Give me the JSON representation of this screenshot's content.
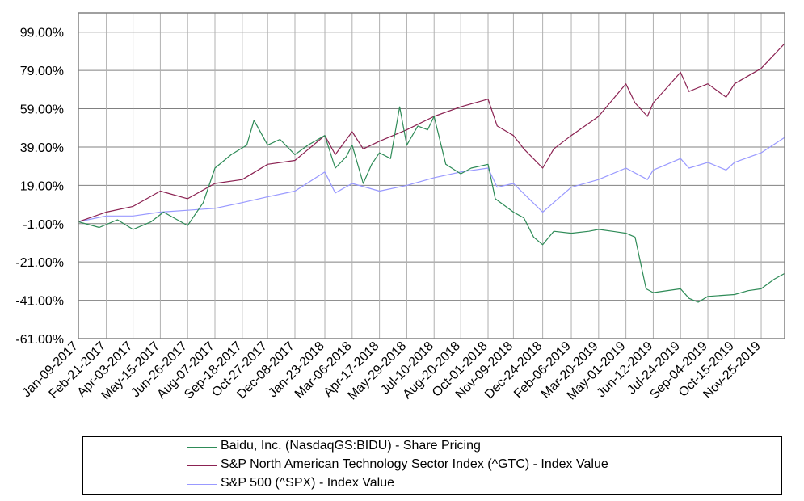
{
  "chart_data": {
    "type": "line",
    "ylim": [
      -61,
      109
    ],
    "yticks": [
      "99.00%",
      "79.00%",
      "59.00%",
      "39.00%",
      "19.00%",
      "-1.00%",
      "-21.00%",
      "-41.00%",
      "-61.00%"
    ],
    "ytick_values": [
      99,
      79,
      59,
      39,
      19,
      -1,
      -21,
      -41,
      -61
    ],
    "xticks": [
      "Jan-09-2017",
      "Feb-21-2017",
      "Apr-03-2017",
      "May-15-2017",
      "Jun-26-2017",
      "Aug-07-2017",
      "Sep-18-2017",
      "Oct-27-2017",
      "Dec-08-2017",
      "Jan-23-2018",
      "Mar-06-2018",
      "Apr-17-2018",
      "May-29-2018",
      "Jul-10-2018",
      "Aug-20-2018",
      "Oct-01-2018",
      "Nov-09-2018",
      "Dec-24-2018",
      "Feb-06-2019",
      "Mar-20-2019",
      "May-01-2019",
      "Jun-12-2019",
      "Jul-24-2019",
      "Sep-04-2019",
      "Oct-15-2019",
      "Nov-25-2019"
    ],
    "xlim": [
      "Jan-09-2017",
      "Dec-31-2019"
    ],
    "grid": true,
    "legend_position": "bottom",
    "series": [
      {
        "name": "Baidu, Inc. (NasdaqGS:BIDU) - Share Pricing",
        "color": "#2e8b57",
        "points": [
          [
            "Jan-09-2017",
            0
          ],
          [
            "Feb-10-2017",
            -3
          ],
          [
            "Mar-10-2017",
            1
          ],
          [
            "Apr-03-2017",
            -4
          ],
          [
            "May-01-2017",
            0
          ],
          [
            "May-20-2017",
            5
          ],
          [
            "Jun-26-2017",
            -2
          ],
          [
            "Jul-20-2017",
            10
          ],
          [
            "Aug-07-2017",
            28
          ],
          [
            "Sep-01-2017",
            35
          ],
          [
            "Sep-25-2017",
            40
          ],
          [
            "Oct-06-2017",
            53
          ],
          [
            "Oct-27-2017",
            40
          ],
          [
            "Nov-15-2017",
            43
          ],
          [
            "Dec-08-2017",
            35
          ],
          [
            "Dec-28-2017",
            40
          ],
          [
            "Jan-23-2018",
            45
          ],
          [
            "Feb-08-2018",
            28
          ],
          [
            "Feb-25-2018",
            34
          ],
          [
            "Mar-06-2018",
            40
          ],
          [
            "Mar-23-2018",
            20
          ],
          [
            "Apr-05-2018",
            30
          ],
          [
            "Apr-17-2018",
            36
          ],
          [
            "May-04-2018",
            33
          ],
          [
            "May-18-2018",
            60
          ],
          [
            "May-29-2018",
            40
          ],
          [
            "Jun-15-2018",
            50
          ],
          [
            "Jun-30-2018",
            48
          ],
          [
            "Jul-10-2018",
            55
          ],
          [
            "Jul-28-2018",
            30
          ],
          [
            "Aug-20-2018",
            25
          ],
          [
            "Sep-05-2018",
            28
          ],
          [
            "Oct-01-2018",
            30
          ],
          [
            "Oct-12-2018",
            12
          ],
          [
            "Nov-09-2018",
            5
          ],
          [
            "Nov-25-2018",
            2
          ],
          [
            "Dec-10-2018",
            -8
          ],
          [
            "Dec-24-2018",
            -12
          ],
          [
            "Jan-10-2019",
            -5
          ],
          [
            "Feb-06-2019",
            -6
          ],
          [
            "Mar-05-2019",
            -5
          ],
          [
            "Mar-20-2019",
            -4
          ],
          [
            "Apr-10-2019",
            -5
          ],
          [
            "May-01-2019",
            -6
          ],
          [
            "May-15-2019",
            -8
          ],
          [
            "Jun-01-2019",
            -35
          ],
          [
            "Jun-12-2019",
            -37
          ],
          [
            "Jul-24-2019",
            -35
          ],
          [
            "Aug-06-2019",
            -40
          ],
          [
            "Aug-20-2019",
            -42
          ],
          [
            "Sep-04-2019",
            -39
          ],
          [
            "Oct-15-2019",
            -38
          ],
          [
            "Nov-05-2019",
            -36
          ],
          [
            "Nov-25-2019",
            -35
          ],
          [
            "Dec-15-2019",
            -30
          ],
          [
            "Dec-31-2019",
            -27
          ]
        ]
      },
      {
        "name": "S&P North American Technology Sector Index (^GTC) - Index Value",
        "color": "#8b2252",
        "points": [
          [
            "Jan-09-2017",
            0
          ],
          [
            "Feb-21-2017",
            5
          ],
          [
            "Apr-03-2017",
            8
          ],
          [
            "May-15-2017",
            16
          ],
          [
            "Jun-26-2017",
            12
          ],
          [
            "Aug-07-2017",
            20
          ],
          [
            "Sep-18-2017",
            22
          ],
          [
            "Oct-27-2017",
            30
          ],
          [
            "Dec-08-2017",
            32
          ],
          [
            "Jan-23-2018",
            45
          ],
          [
            "Feb-08-2018",
            35
          ],
          [
            "Mar-06-2018",
            47
          ],
          [
            "Mar-23-2018",
            38
          ],
          [
            "Apr-17-2018",
            42
          ],
          [
            "May-29-2018",
            48
          ],
          [
            "Jul-10-2018",
            55
          ],
          [
            "Aug-20-2018",
            60
          ],
          [
            "Sep-10-2018",
            62
          ],
          [
            "Oct-01-2018",
            64
          ],
          [
            "Oct-15-2018",
            50
          ],
          [
            "Nov-09-2018",
            45
          ],
          [
            "Nov-25-2018",
            38
          ],
          [
            "Dec-24-2018",
            28
          ],
          [
            "Jan-10-2019",
            38
          ],
          [
            "Feb-06-2019",
            45
          ],
          [
            "Mar-20-2019",
            55
          ],
          [
            "May-01-2019",
            72
          ],
          [
            "May-15-2019",
            62
          ],
          [
            "Jun-03-2019",
            55
          ],
          [
            "Jun-12-2019",
            62
          ],
          [
            "Jul-24-2019",
            78
          ],
          [
            "Aug-06-2019",
            68
          ],
          [
            "Aug-20-2019",
            70
          ],
          [
            "Sep-04-2019",
            72
          ],
          [
            "Oct-02-2019",
            65
          ],
          [
            "Oct-15-2019",
            72
          ],
          [
            "Nov-25-2019",
            80
          ],
          [
            "Dec-31-2019",
            93
          ]
        ]
      },
      {
        "name": "S&P 500 (^SPX) - Index Value",
        "color": "#9999ff",
        "points": [
          [
            "Jan-09-2017",
            0
          ],
          [
            "Feb-21-2017",
            3
          ],
          [
            "Apr-03-2017",
            3
          ],
          [
            "May-15-2017",
            5
          ],
          [
            "Jun-26-2017",
            6
          ],
          [
            "Aug-07-2017",
            7
          ],
          [
            "Sep-18-2017",
            10
          ],
          [
            "Oct-27-2017",
            13
          ],
          [
            "Dec-08-2017",
            16
          ],
          [
            "Jan-23-2018",
            26
          ],
          [
            "Feb-08-2018",
            15
          ],
          [
            "Mar-06-2018",
            20
          ],
          [
            "Apr-17-2018",
            16
          ],
          [
            "May-29-2018",
            19
          ],
          [
            "Jul-10-2018",
            23
          ],
          [
            "Aug-20-2018",
            26
          ],
          [
            "Oct-01-2018",
            28
          ],
          [
            "Oct-15-2018",
            18
          ],
          [
            "Nov-09-2018",
            20
          ],
          [
            "Dec-24-2018",
            5
          ],
          [
            "Feb-06-2019",
            18
          ],
          [
            "Mar-20-2019",
            22
          ],
          [
            "May-01-2019",
            28
          ],
          [
            "Jun-03-2019",
            22
          ],
          [
            "Jun-12-2019",
            27
          ],
          [
            "Jul-24-2019",
            33
          ],
          [
            "Aug-06-2019",
            28
          ],
          [
            "Sep-04-2019",
            31
          ],
          [
            "Oct-02-2019",
            27
          ],
          [
            "Oct-15-2019",
            31
          ],
          [
            "Nov-25-2019",
            36
          ],
          [
            "Dec-31-2019",
            44
          ]
        ]
      }
    ]
  }
}
